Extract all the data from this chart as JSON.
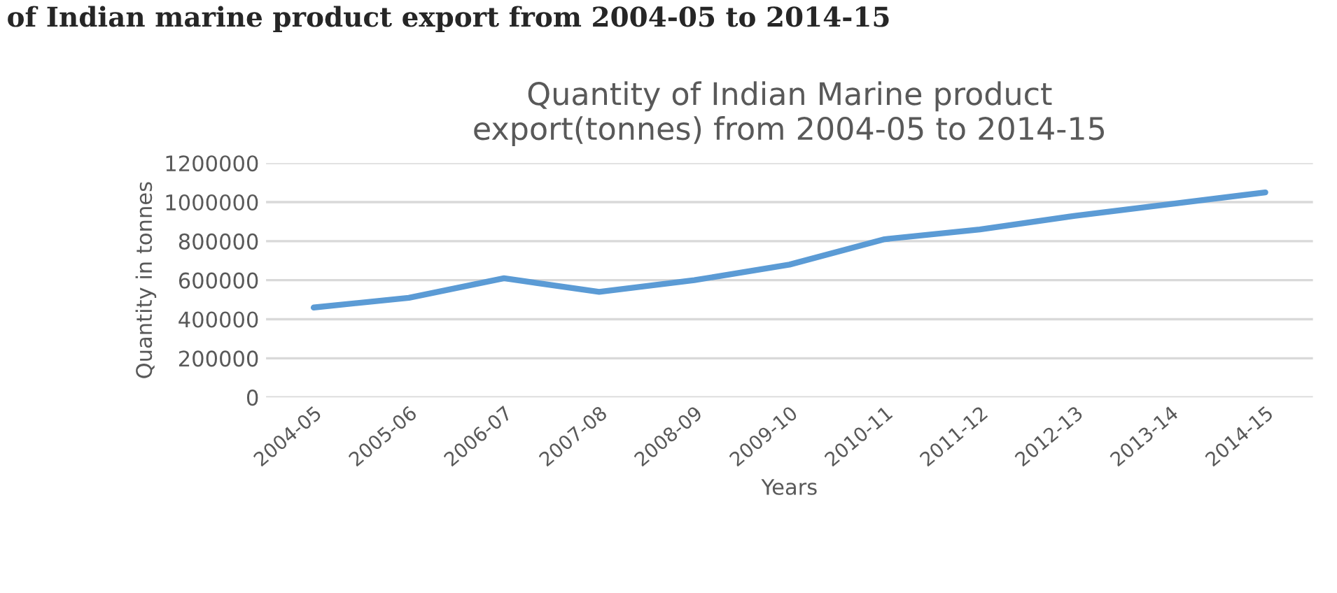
{
  "chart_data": {
    "type": "line",
    "title": "Quantity of Indian Marine product\nexport(tonnes) from 2004-05 to 2014-15",
    "xlabel": "Years",
    "ylabel": "Quantity in tonnes",
    "annotations": [
      "of Indian marine product export from 2004-05 to 2014-15"
    ],
    "categories": [
      "2004-05",
      "2005-06",
      "2006-07",
      "2007-08",
      "2008-09",
      "2009-10",
      "2010-11",
      "2011-12",
      "2012-13",
      "2013-14",
      "2014-15"
    ],
    "series": [
      {
        "color": "#5b9bd5",
        "values": [
          460000,
          510000,
          610000,
          540000,
          600000,
          680000,
          810000,
          860000,
          930000,
          990000,
          1050000
        ]
      }
    ],
    "ylim": [
      0,
      1200000
    ],
    "yticks": [
      0,
      200000,
      400000,
      600000,
      800000,
      1000000,
      1200000
    ],
    "grid": "y",
    "legend": false,
    "marker": "none",
    "line_style": "solid"
  }
}
